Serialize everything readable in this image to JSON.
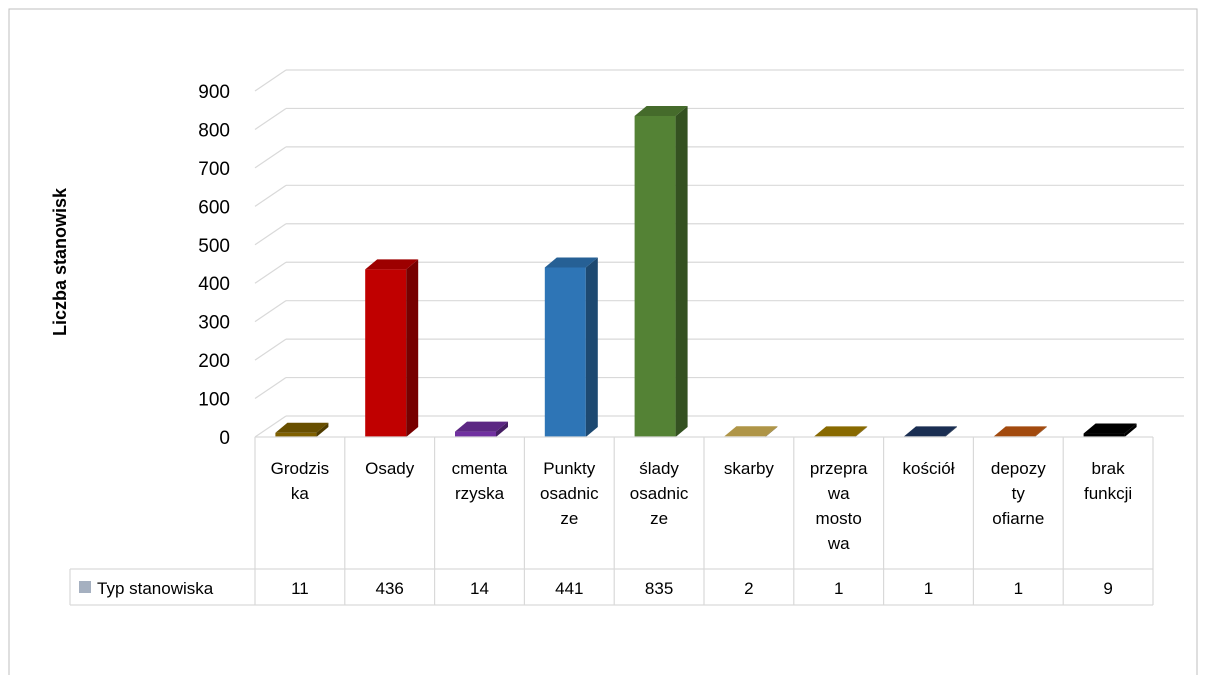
{
  "chart_data": {
    "type": "bar",
    "style": "3d-column-with-data-table",
    "categories": [
      [
        "Grodzis",
        "ka"
      ],
      [
        "Osady"
      ],
      [
        "cmenta",
        "rzyska"
      ],
      [
        "Punkty",
        "osadnic",
        "ze"
      ],
      [
        "ślady",
        "osadnic",
        "ze"
      ],
      [
        "skarby"
      ],
      [
        "przepra",
        "wa",
        "mosto",
        "wa"
      ],
      [
        "kościół"
      ],
      [
        "depozy",
        "ty",
        "ofiarne"
      ],
      [
        "brak",
        "funkcji"
      ]
    ],
    "series": [
      {
        "name": "Typ stanowiska",
        "values": [
          11,
          436,
          14,
          441,
          835,
          2,
          1,
          1,
          1,
          9
        ]
      }
    ],
    "colors": [
      "#7f6000",
      "#c00000",
      "#7030a0",
      "#2e75b6",
      "#548235",
      "#d6b656",
      "#a68000",
      "#203864",
      "#c55a11",
      "#000000"
    ],
    "legend_color": "#a5b0c0",
    "title": "",
    "xlabel": "",
    "ylabel": "Liczba stanowisk",
    "ylim": [
      0,
      900
    ],
    "yticks": [
      0,
      100,
      200,
      300,
      400,
      500,
      600,
      700,
      800,
      900
    ],
    "grid": true,
    "legend_position": "data-table-left"
  }
}
